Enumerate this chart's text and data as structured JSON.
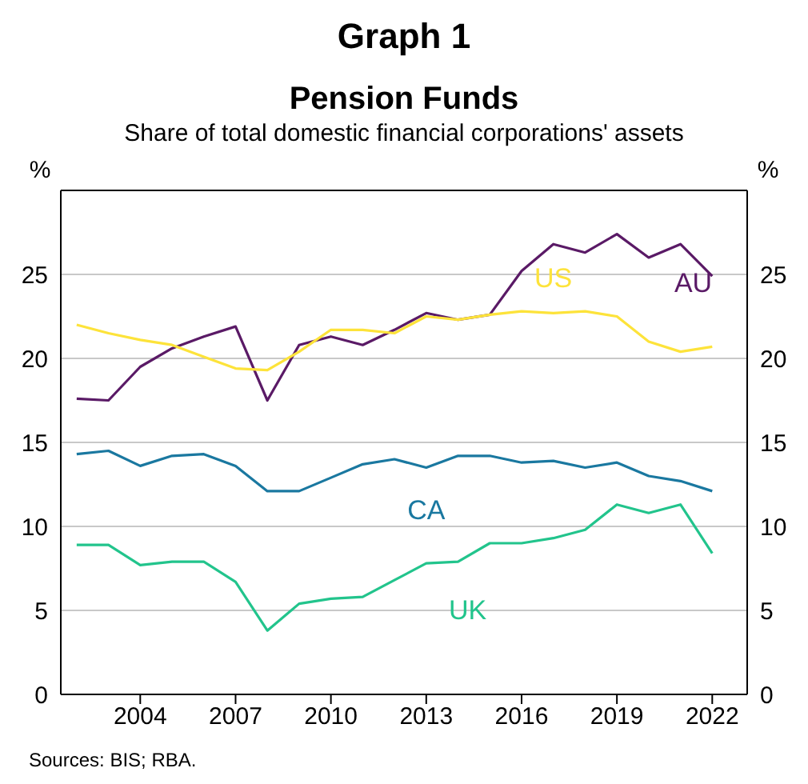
{
  "chart_data": {
    "type": "line",
    "title": "Pension Funds",
    "subtitle": "Share of total domestic financial corporations' assets",
    "annotations": [
      "Graph 1",
      "Sources: BIS; RBA."
    ],
    "ylabel": "%",
    "y2label": "%",
    "x": [
      2002,
      2003,
      2004,
      2005,
      2006,
      2007,
      2008,
      2009,
      2010,
      2011,
      2012,
      2013,
      2014,
      2015,
      2016,
      2017,
      2018,
      2019,
      2020,
      2021,
      2022
    ],
    "series": [
      {
        "name": "AU",
        "color": "#5a1a66",
        "values": [
          17.6,
          17.5,
          19.5,
          20.6,
          21.3,
          21.9,
          17.5,
          20.8,
          21.3,
          20.8,
          21.7,
          22.7,
          22.3,
          22.6,
          25.2,
          26.8,
          26.3,
          27.4,
          26.0,
          26.8,
          24.9
        ]
      },
      {
        "name": "US",
        "color": "#fde33a",
        "values": [
          22.0,
          21.5,
          21.1,
          20.8,
          20.1,
          19.4,
          19.3,
          20.4,
          21.7,
          21.7,
          21.5,
          22.5,
          22.3,
          22.6,
          22.8,
          22.7,
          22.8,
          22.5,
          21.0,
          20.4,
          20.7
        ]
      },
      {
        "name": "CA",
        "color": "#1a78a0",
        "values": [
          14.3,
          14.5,
          13.6,
          14.2,
          14.3,
          13.6,
          12.1,
          12.1,
          12.9,
          13.7,
          14.0,
          13.5,
          14.2,
          14.2,
          13.8,
          13.9,
          13.5,
          13.8,
          13.0,
          12.7,
          12.1
        ]
      },
      {
        "name": "UK",
        "color": "#22c48c",
        "values": [
          8.9,
          8.9,
          7.7,
          7.9,
          7.9,
          6.7,
          3.8,
          5.4,
          5.7,
          5.8,
          6.8,
          7.8,
          7.9,
          9.0,
          9.0,
          9.3,
          9.8,
          11.3,
          10.8,
          11.3,
          8.4
        ]
      }
    ],
    "xlim": [
      2001.5,
      2023.1
    ],
    "xticks": [
      2004,
      2007,
      2010,
      2013,
      2016,
      2019,
      2022
    ],
    "ylim": [
      0,
      30
    ],
    "yticks": [
      0,
      5,
      10,
      15,
      20,
      25
    ],
    "y2lim": [
      0,
      30
    ],
    "y2ticks": [
      0,
      5,
      10,
      15,
      20,
      25
    ],
    "grid": "y",
    "legend": false,
    "marker": "none",
    "line_style": "solid"
  }
}
